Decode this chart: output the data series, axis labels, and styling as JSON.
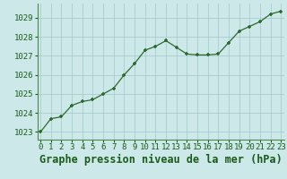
{
  "x": [
    0,
    1,
    2,
    3,
    4,
    5,
    6,
    7,
    8,
    9,
    10,
    11,
    12,
    13,
    14,
    15,
    16,
    17,
    18,
    19,
    20,
    21,
    22,
    23
  ],
  "y": [
    1023.0,
    1023.7,
    1023.8,
    1024.4,
    1024.6,
    1024.7,
    1025.0,
    1025.3,
    1026.0,
    1026.6,
    1027.3,
    1027.5,
    1027.8,
    1027.45,
    1027.1,
    1027.05,
    1027.05,
    1027.1,
    1027.7,
    1028.3,
    1028.55,
    1028.8,
    1029.2,
    1029.35
  ],
  "line_color": "#2d6a2d",
  "marker": "P",
  "marker_size": 3.5,
  "bg_color": "#cce8e8",
  "grid_color": "#aacccc",
  "title": "Graphe pression niveau de la mer (hPa)",
  "ylabel_ticks": [
    1023,
    1024,
    1025,
    1026,
    1027,
    1028,
    1029
  ],
  "ylim": [
    1022.6,
    1029.75
  ],
  "xlim": [
    -0.3,
    23.3
  ],
  "title_color": "#1a5c1a",
  "title_fontsize": 8.5,
  "tick_fontsize": 6.5,
  "tick_color": "#1a5c1a",
  "spine_color": "#4a8a4a"
}
